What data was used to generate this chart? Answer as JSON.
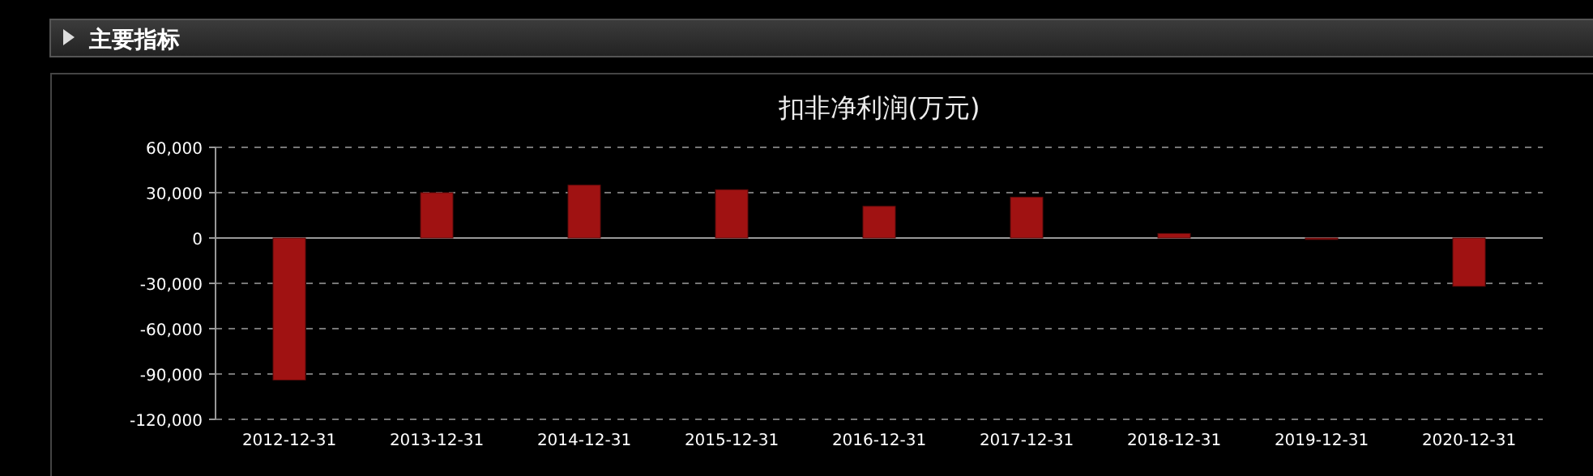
{
  "chart_data": {
    "type": "bar",
    "title": "扣非净利润(万元)",
    "annotations": [
      "主要指标"
    ],
    "categories": [
      "2012-12-31",
      "2013-12-31",
      "2014-12-31",
      "2015-12-31",
      "2016-12-31",
      "2017-12-31",
      "2018-12-31",
      "2019-12-31",
      "2020-12-31"
    ],
    "values": [
      -94000,
      30000,
      35000,
      32000,
      21000,
      27000,
      3000,
      -1000,
      -32000
    ],
    "color": "#a01212",
    "ylim": [
      -120000,
      60000
    ],
    "yticks": [
      {
        "value": -120000,
        "label": "-120,000"
      },
      {
        "value": -90000,
        "label": "-90,000"
      },
      {
        "value": -60000,
        "label": "-60,000"
      },
      {
        "value": -30000,
        "label": "-30,000"
      },
      0,
      {
        "value": 30000,
        "label": "30,000"
      },
      {
        "value": 60000,
        "label": "60,000"
      }
    ],
    "grid": "y"
  }
}
